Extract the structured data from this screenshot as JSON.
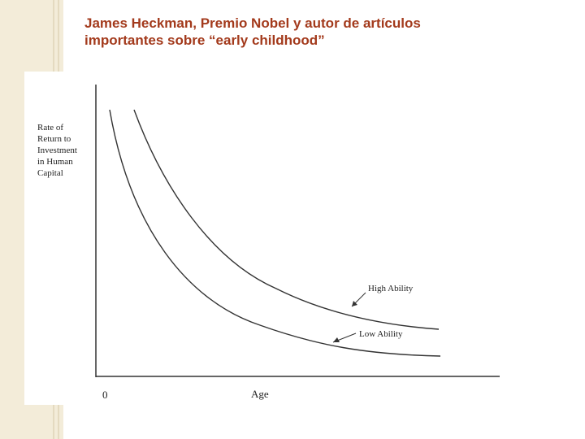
{
  "slide": {
    "title": [
      "James Heckman, Premio Nobel y autor de artículos",
      "importantes sobre “early childhood”"
    ]
  },
  "figure": {
    "y_label": [
      "Rate of",
      "Return to",
      "Investment",
      "in Human",
      "Capital"
    ],
    "x_label": "Age",
    "origin": "0",
    "curves": [
      {
        "label": "High Ability"
      },
      {
        "label": "Low Ability"
      }
    ]
  }
}
